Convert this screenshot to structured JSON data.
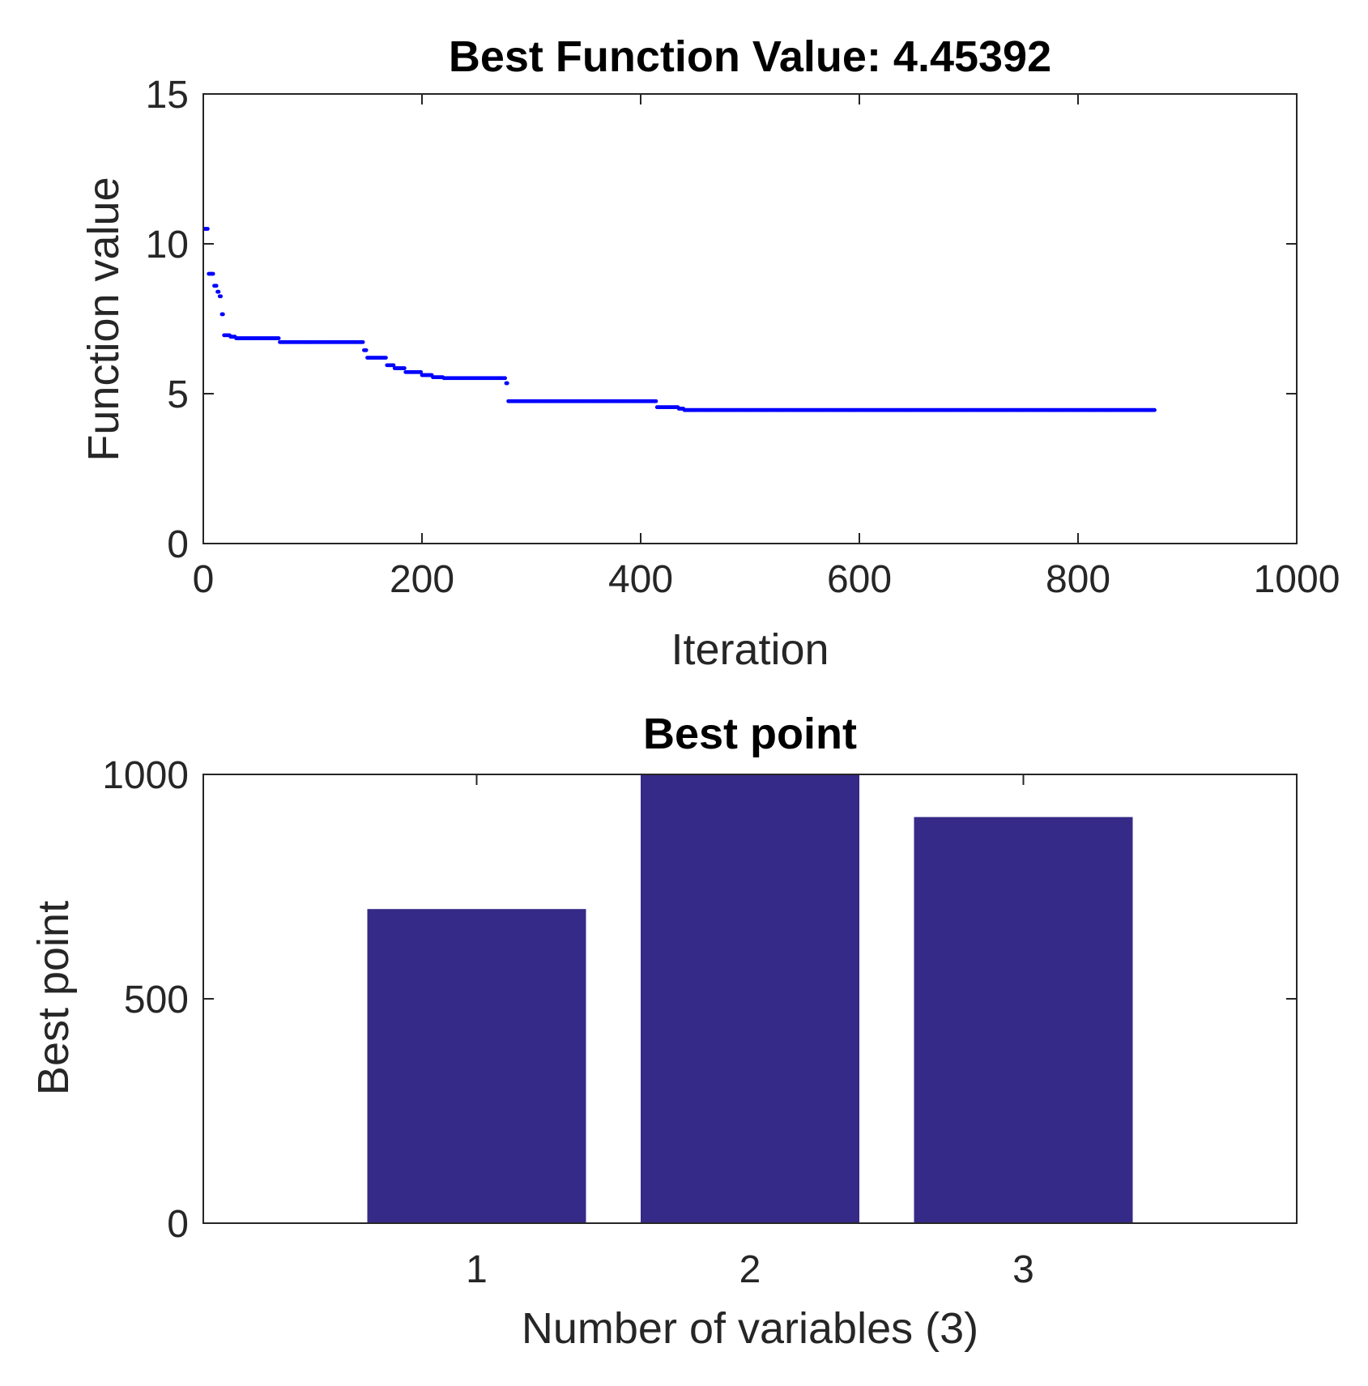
{
  "chart_data": [
    {
      "type": "scatter",
      "title": "Best Function Value: 4.45392",
      "xlabel": "Iteration",
      "ylabel": "Function value",
      "xlim": [
        0,
        1000
      ],
      "ylim": [
        0,
        15
      ],
      "xticks": [
        0,
        200,
        400,
        600,
        800,
        1000
      ],
      "yticks": [
        0,
        5,
        10,
        15
      ],
      "grid": false,
      "marker_color": "#0000ff",
      "series": [
        {
          "values": [
            {
              "x": 1,
              "y": 10.5
            },
            {
              "x": 5,
              "y": 9.0
            },
            {
              "x": 10,
              "y": 8.6
            },
            {
              "x": 13,
              "y": 8.4
            },
            {
              "x": 15,
              "y": 8.25
            },
            {
              "x": 17,
              "y": 7.65
            },
            {
              "x": 19,
              "y": 6.95
            },
            {
              "x": 25,
              "y": 6.9
            },
            {
              "x": 30,
              "y": 6.85
            },
            {
              "x": 65,
              "y": 6.85
            },
            {
              "x": 70,
              "y": 6.72
            },
            {
              "x": 145,
              "y": 6.72
            },
            {
              "x": 147,
              "y": 6.45
            },
            {
              "x": 150,
              "y": 6.2
            },
            {
              "x": 165,
              "y": 6.2
            },
            {
              "x": 168,
              "y": 5.95
            },
            {
              "x": 175,
              "y": 5.85
            },
            {
              "x": 185,
              "y": 5.72
            },
            {
              "x": 200,
              "y": 5.62
            },
            {
              "x": 210,
              "y": 5.55
            },
            {
              "x": 220,
              "y": 5.52
            },
            {
              "x": 275,
              "y": 5.52
            },
            {
              "x": 277,
              "y": 5.35
            },
            {
              "x": 279,
              "y": 4.75
            },
            {
              "x": 413,
              "y": 4.75
            },
            {
              "x": 415,
              "y": 4.55
            },
            {
              "x": 435,
              "y": 4.5
            },
            {
              "x": 440,
              "y": 4.45392
            },
            {
              "x": 870,
              "y": 4.45392
            }
          ]
        }
      ]
    },
    {
      "type": "bar",
      "title": "Best point",
      "xlabel": "Number of variables (3)",
      "ylabel": "Best point",
      "categories": [
        "1",
        "2",
        "3"
      ],
      "values": [
        700,
        1000,
        905
      ],
      "xlim": [
        0,
        4
      ],
      "ylim": [
        0,
        1000
      ],
      "yticks": [
        0,
        500,
        1000
      ],
      "grid": false,
      "bar_color": "#352a87"
    }
  ]
}
